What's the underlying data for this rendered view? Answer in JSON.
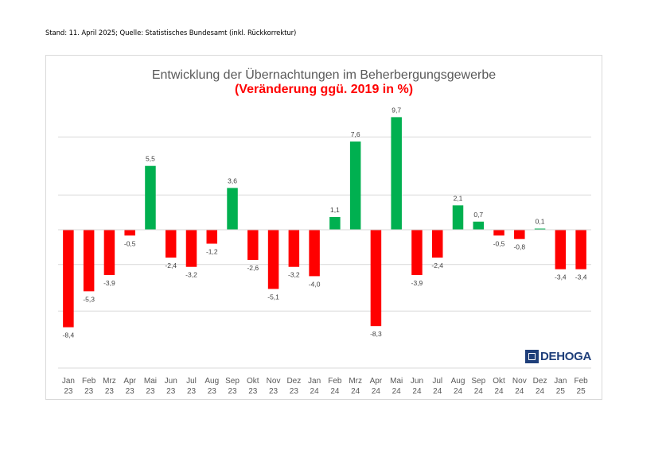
{
  "source_note": "Stand: 11. April 2025; Quelle: Statistisches Bundesamt (inkl. Rückkorrektur)",
  "logo_text": "DEHOGA",
  "colors": {
    "negative": "#ff0000",
    "positive": "#00b050",
    "gridline": "#d9d9d9",
    "axis": "#d9d9d9"
  },
  "chart_data": {
    "type": "bar",
    "title": "Entwicklung der Übernachtungen im Beherbergungsgewerbe",
    "subtitle": "(Veränderung ggü. 2019 in %)",
    "xlabel": "",
    "ylabel": "",
    "grid": true,
    "legend": "none",
    "ylim": [
      -10,
      10
    ],
    "categories": [
      [
        "Jan",
        "23"
      ],
      [
        "Feb",
        "23"
      ],
      [
        "Mrz",
        "23"
      ],
      [
        "Apr",
        "23"
      ],
      [
        "Mai",
        "23"
      ],
      [
        "Jun",
        "23"
      ],
      [
        "Jul",
        "23"
      ],
      [
        "Aug",
        "23"
      ],
      [
        "Sep",
        "23"
      ],
      [
        "Okt",
        "23"
      ],
      [
        "Nov",
        "23"
      ],
      [
        "Dez",
        "23"
      ],
      [
        "Jan",
        "24"
      ],
      [
        "Feb",
        "24"
      ],
      [
        "Mrz",
        "24"
      ],
      [
        "Apr",
        "24"
      ],
      [
        "Mai",
        "24"
      ],
      [
        "Jun",
        "24"
      ],
      [
        "Jul",
        "24"
      ],
      [
        "Aug",
        "24"
      ],
      [
        "Sep",
        "24"
      ],
      [
        "Okt",
        "24"
      ],
      [
        "Nov",
        "24"
      ],
      [
        "Dez",
        "24"
      ],
      [
        "Jan",
        "25"
      ],
      [
        "Feb",
        "25"
      ]
    ],
    "values": [
      -8.4,
      -5.3,
      -3.9,
      -0.5,
      5.5,
      -2.4,
      -3.2,
      -1.2,
      3.6,
      -2.6,
      -5.1,
      -3.2,
      -4.0,
      1.1,
      7.6,
      -8.3,
      9.7,
      -3.9,
      -2.4,
      2.1,
      0.7,
      -0.5,
      -0.8,
      0.1,
      -3.4,
      -3.4
    ],
    "value_labels": [
      "-8,4",
      "-5,3",
      "-3,9",
      "-0,5",
      "5,5",
      "-2,4",
      "-3,2",
      "-1,2",
      "3,6",
      "-2,6",
      "-5,1",
      "-3,2",
      "-4,0",
      "1,1",
      "7,6",
      "-8,3",
      "9,7",
      "-3,9",
      "-2,4",
      "2,1",
      "0,7",
      "-0,5",
      "-0,8",
      "0,1",
      "-3,4",
      "-3,4"
    ]
  }
}
